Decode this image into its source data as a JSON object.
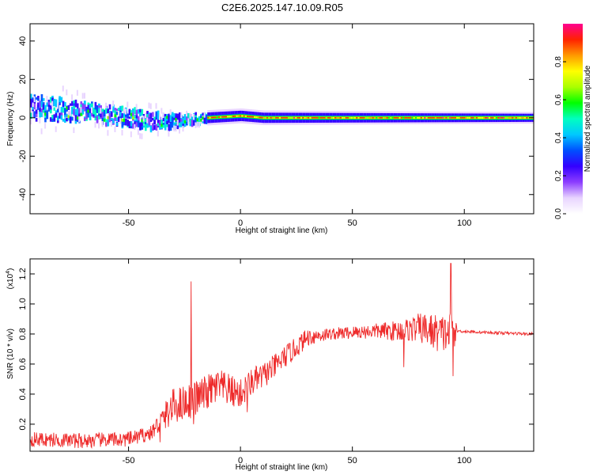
{
  "page": {
    "title": "C2E6.2025.147.10.09.R05"
  },
  "chart_data": [
    {
      "type": "heatmap",
      "name": "spectrogram",
      "title": "C2E6.2025.147.10.09.R05",
      "xlabel": "Height of straight line (km)",
      "ylabel": "Frequency (Hz)",
      "xlim": [
        -94,
        131
      ],
      "ylim": [
        -50,
        49
      ],
      "xticks": [
        -50,
        0,
        50,
        100
      ],
      "yticks": [
        -40,
        -20,
        0,
        20,
        40
      ],
      "colorbar": {
        "label": "Normalized spectral amplitude",
        "range": [
          0.0,
          1.0
        ],
        "ticks": [
          "0.0",
          "0.2",
          "0.4",
          "0.6",
          "0.8"
        ],
        "tick_values": [
          0.0,
          0.2,
          0.4,
          0.6,
          0.8
        ],
        "colors": [
          "#ffffff",
          "#e8d4ff",
          "#8c3dff",
          "#3300ff",
          "#0050ff",
          "#00c8ff",
          "#00ffc0",
          "#00ff00",
          "#aaff00",
          "#ffff00",
          "#ff9900",
          "#ff2200",
          "#ff0090"
        ]
      },
      "band": {
        "description": "frequency ridge centred near 0 Hz",
        "center_freq_points": [
          [
            -94,
            5
          ],
          [
            -80,
            4
          ],
          [
            -65,
            2
          ],
          [
            -50,
            0
          ],
          [
            -40,
            -2
          ],
          [
            -30,
            -2
          ],
          [
            -22,
            -1
          ],
          [
            -15,
            0
          ],
          [
            0,
            1
          ],
          [
            10,
            0
          ],
          [
            131,
            0
          ]
        ],
        "spread_hz_points": [
          [
            -94,
            6
          ],
          [
            -60,
            5
          ],
          [
            -35,
            4
          ],
          [
            -20,
            2
          ],
          [
            0,
            1
          ],
          [
            131,
            1
          ]
        ],
        "halo_hz_points": [
          [
            -94,
            12
          ],
          [
            -40,
            10
          ],
          [
            -20,
            4
          ],
          [
            131,
            3
          ]
        ]
      }
    },
    {
      "type": "line",
      "name": "snr",
      "title": "",
      "xlabel": "Height of straight line (km)",
      "ylabel": "SNR (10 * v/v)",
      "scale_label": "(x10",
      "scale_exponent": "4",
      "scale_close": ")",
      "xlim": [
        -94,
        131
      ],
      "ylim": [
        0.02,
        1.3
      ],
      "xticks": [
        -50,
        0,
        50,
        100
      ],
      "yticks": [
        0.2,
        0.4,
        0.6,
        0.8,
        1.0,
        1.2
      ],
      "color": "#ee2a2a",
      "trend": [
        [
          -94,
          0.1
        ],
        [
          -70,
          0.09
        ],
        [
          -50,
          0.1
        ],
        [
          -40,
          0.14
        ],
        [
          -30,
          0.32
        ],
        [
          -20,
          0.37
        ],
        [
          -10,
          0.45
        ],
        [
          0,
          0.4
        ],
        [
          5,
          0.48
        ],
        [
          10,
          0.52
        ],
        [
          15,
          0.58
        ],
        [
          20,
          0.65
        ],
        [
          25,
          0.71
        ],
        [
          30,
          0.78
        ],
        [
          40,
          0.8
        ],
        [
          50,
          0.81
        ],
        [
          60,
          0.82
        ],
        [
          70,
          0.82
        ],
        [
          80,
          0.84
        ],
        [
          90,
          0.8
        ],
        [
          97,
          0.82
        ],
        [
          110,
          0.81
        ],
        [
          131,
          0.8
        ]
      ],
      "noise": [
        [
          -94,
          0.05
        ],
        [
          -40,
          0.05
        ],
        [
          -30,
          0.12
        ],
        [
          -10,
          0.12
        ],
        [
          0,
          0.1
        ],
        [
          25,
          0.07
        ],
        [
          40,
          0.04
        ],
        [
          60,
          0.05
        ],
        [
          75,
          0.08
        ],
        [
          85,
          0.12
        ],
        [
          95,
          0.14
        ],
        [
          97,
          0.01
        ],
        [
          131,
          0.01
        ]
      ],
      "spikes": [
        [
          -22,
          1.15
        ],
        [
          -21,
          0.2
        ],
        [
          3,
          0.28
        ],
        [
          94,
          1.27
        ],
        [
          95,
          0.52
        ],
        [
          73,
          0.58
        ],
        [
          -36,
          0.08
        ]
      ]
    }
  ]
}
